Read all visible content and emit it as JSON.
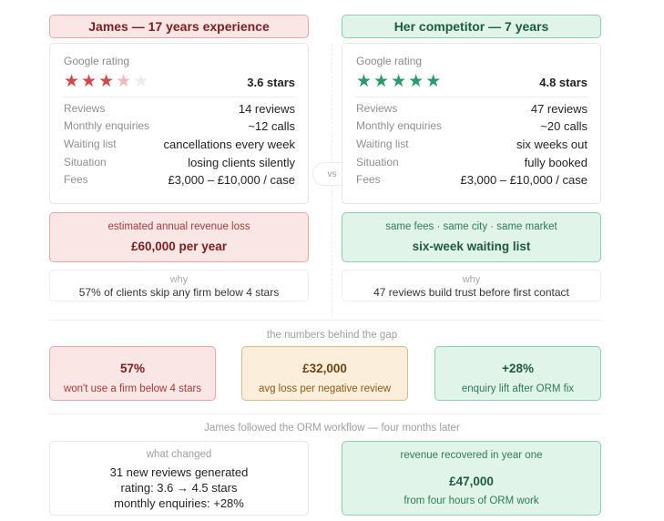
{
  "left": {
    "header": "James — 17 years experience",
    "rating_label": "Google rating",
    "rating_value": "3.6 stars",
    "rating": 3.6,
    "rows": [
      {
        "key": "Reviews",
        "value": "14 reviews"
      },
      {
        "key": "Monthly enquiries",
        "value": "~12 calls"
      },
      {
        "key": "Waiting list",
        "value": "cancellations every week"
      },
      {
        "key": "Situation",
        "value": "losing clients silently"
      },
      {
        "key": "Fees",
        "value": "£3,000 – £10,000 / case"
      }
    ],
    "summary_small": "estimated annual revenue loss",
    "summary_big": "£60,000 per year",
    "why_label": "why",
    "why_text": "57% of clients skip any firm below 4 stars"
  },
  "vs_label": "vs",
  "right": {
    "header": "Her competitor — 7 years",
    "rating_label": "Google rating",
    "rating_value": "4.8 stars",
    "rating": 4.8,
    "rows": [
      {
        "key": "Reviews",
        "value": "47 reviews"
      },
      {
        "key": "Monthly enquiries",
        "value": "~20 calls"
      },
      {
        "key": "Waiting list",
        "value": "six weeks out"
      },
      {
        "key": "Situation",
        "value": "fully booked"
      },
      {
        "key": "Fees",
        "value": "£3,000 – £10,000 / case"
      }
    ],
    "summary_small": "same fees · same city · same market",
    "summary_big": "six-week waiting list",
    "why_label": "why",
    "why_text": "47 reviews build trust before first contact"
  },
  "numbers": {
    "title": "the numbers behind the gap",
    "stats": [
      {
        "value": "57%",
        "label": "won't use a firm below 4 stars"
      },
      {
        "value": "£32,000",
        "label": "avg loss per negative review"
      },
      {
        "value": "+28%",
        "label": "enquiry lift after ORM fix"
      }
    ]
  },
  "outcome": {
    "title": "James followed the ORM workflow — four months later",
    "changed_label": "what changed",
    "changed_lines": [
      "31 new reviews generated",
      "rating: 3.6 → 4.5 stars",
      "monthly enquiries: +28%"
    ],
    "recovered_label": "revenue recovered in year one",
    "recovered_value": "£47,000",
    "recovered_note": "from four hours of ORM work"
  },
  "colors": {
    "red_accent": "#cf4b4b",
    "green_accent": "#2b9a6a",
    "amber_accent": "#d9b98a"
  }
}
